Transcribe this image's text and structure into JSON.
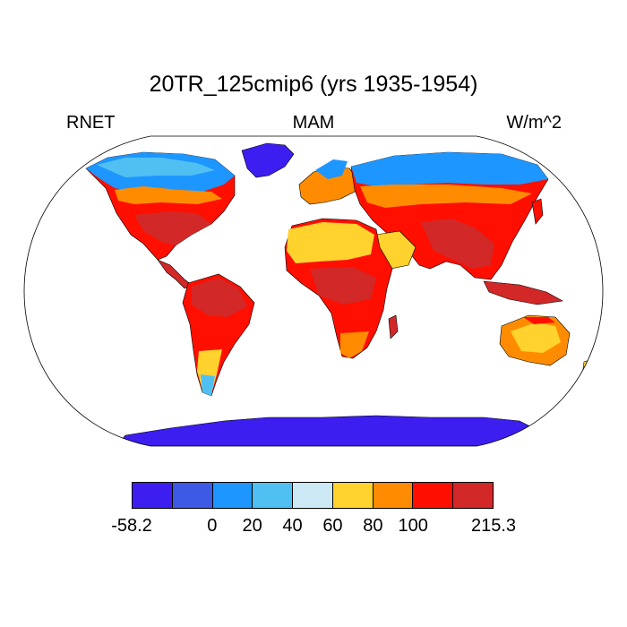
{
  "title": "20TR_125cmip6 (yrs 1935-1954)",
  "left_label": "RNET",
  "center_label": "MAM",
  "right_label": "W/m^2",
  "colorbar": {
    "colors": [
      "#3c1ef0",
      "#3c5ae6",
      "#1e96ff",
      "#50c0f2",
      "#cde8f5",
      "#ffd22d",
      "#ff8c00",
      "#ff0f00",
      "#d22828"
    ],
    "tick_labels": [
      "-58.2",
      "0",
      "20",
      "40",
      "60",
      "80",
      "100",
      "215.3"
    ]
  }
}
